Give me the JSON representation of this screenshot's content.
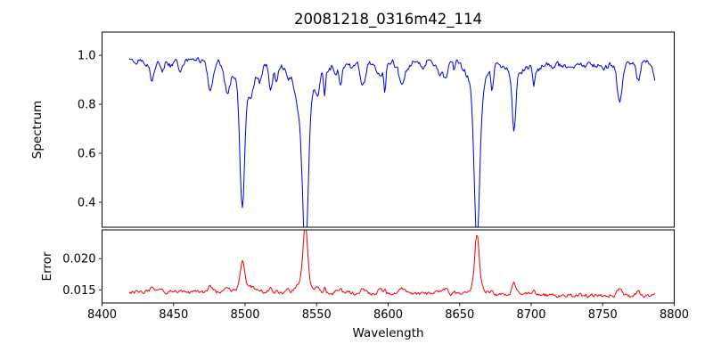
{
  "chart_data": {
    "type": "line",
    "title": "20081218_0316m42_114",
    "xlabel": "Wavelength",
    "xlim": [
      8400,
      8800
    ],
    "xticks": [
      8400,
      8450,
      8500,
      8550,
      8600,
      8650,
      8700,
      8750,
      8800
    ],
    "xtick_labels": [
      "8400",
      "8450",
      "8500",
      "8550",
      "8600",
      "8650",
      "8700",
      "8750",
      "8800"
    ],
    "x_range": [
      8419,
      8787
    ],
    "noise_seed": 20081218,
    "legend": "none",
    "grid": false,
    "panels": [
      {
        "name": "spectrum",
        "ylabel": "Spectrum",
        "color": "#0000dd",
        "ylim": [
          0.298,
          1.095
        ],
        "yticks": [
          0.4,
          0.6,
          0.8,
          1.0
        ],
        "ytick_labels": [
          "0.4",
          "0.6",
          "0.8",
          "1.0"
        ],
        "continuum": 0.97,
        "noise_amplitude": 0.022,
        "small_feature_max_depth": 0.13,
        "absorption_lines": [
          {
            "center": 8498.0,
            "depth": 0.49,
            "sigma": 1.6
          },
          {
            "center": 8542.1,
            "depth": 0.655,
            "sigma": 2.0
          },
          {
            "center": 8662.1,
            "depth": 0.615,
            "sigma": 1.9
          },
          {
            "center": 8688.0,
            "depth": 0.225,
            "sigma": 1.2
          }
        ]
      },
      {
        "name": "error",
        "ylabel": "Error",
        "color": "#ee0000",
        "ylim": [
          0.0129,
          0.0246
        ],
        "yticks": [
          0.015,
          0.02
        ],
        "ytick_labels": [
          "0.015",
          "0.020"
        ],
        "baseline_start": 0.0147,
        "baseline_end": 0.014,
        "noise_amplitude": 0.0005,
        "peaks": [
          {
            "center": 8498.0,
            "height": 0.0045,
            "sigma": 1.5
          },
          {
            "center": 8542.1,
            "height": 0.0098,
            "sigma": 1.6
          },
          {
            "center": 8662.1,
            "height": 0.0085,
            "sigma": 1.5
          },
          {
            "center": 8688.0,
            "height": 0.0018,
            "sigma": 1.2
          }
        ]
      }
    ]
  }
}
